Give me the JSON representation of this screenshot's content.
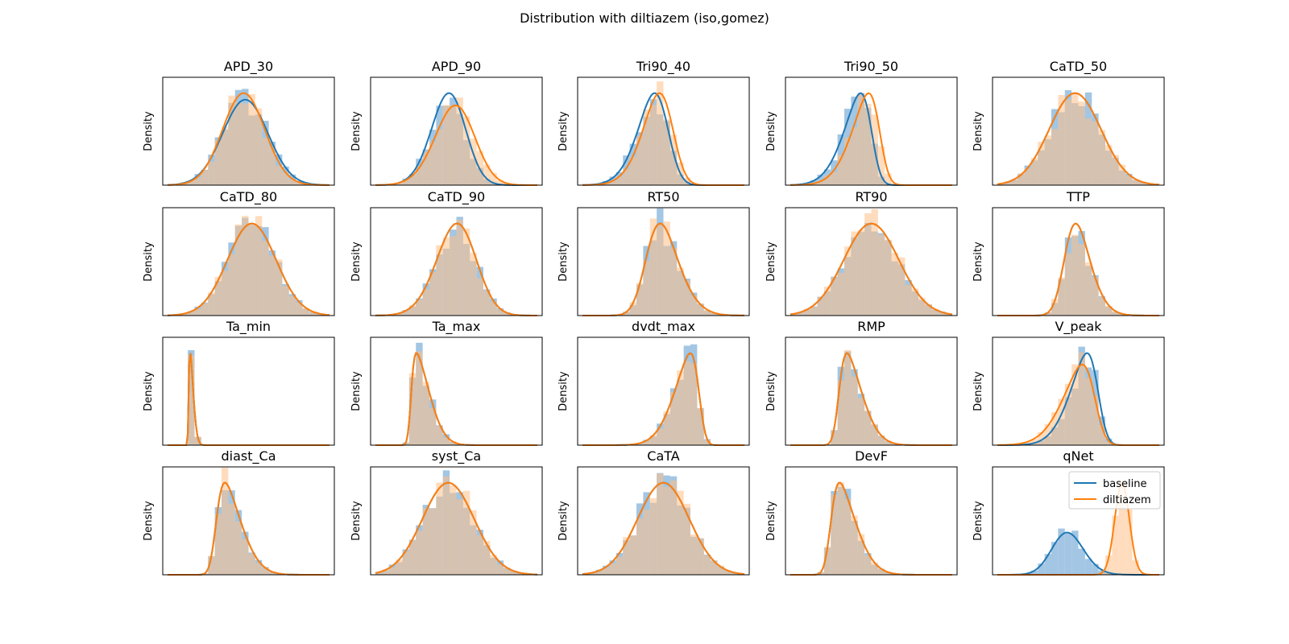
{
  "title": "Distribution with diltiazem (iso,gomez)",
  "colors": {
    "baseline": "#1f77b4",
    "diltiazem": "#ff7f0e",
    "hist_baseline": "#9dc3e2",
    "hist_diltiazem": "#ffbf86",
    "hist_overlap": "#c6a98d"
  },
  "chart_data": {
    "type": "histogram+kde",
    "grid": "5x4",
    "ylabel": "Density",
    "ticks_shown": false,
    "legend": {
      "location": "upper right",
      "in_panel": "qNet",
      "entries": [
        "baseline",
        "diltiazem"
      ]
    },
    "panels": [
      {
        "name": "APD_30",
        "baseline_shape": {
          "mu": 0.48,
          "sd": 0.14,
          "skew": 0
        },
        "diltiazem_shape": {
          "mu": 0.47,
          "sd": 0.13,
          "skew": 0
        }
      },
      {
        "name": "APD_90",
        "baseline_shape": {
          "mu": 0.52,
          "sd": 0.13,
          "skew": -1
        },
        "diltiazem_shape": {
          "mu": 0.57,
          "sd": 0.15,
          "skew": -1
        }
      },
      {
        "name": "Tri90_40",
        "baseline_shape": {
          "mu": 0.52,
          "sd": 0.14,
          "skew": -2
        },
        "diltiazem_shape": {
          "mu": 0.55,
          "sd": 0.14,
          "skew": -2
        }
      },
      {
        "name": "Tri90_50",
        "baseline_shape": {
          "mu": 0.5,
          "sd": 0.14,
          "skew": -3
        },
        "diltiazem_shape": {
          "mu": 0.55,
          "sd": 0.14,
          "skew": -3
        }
      },
      {
        "name": "CaTD_50",
        "baseline_shape": {
          "mu": 0.48,
          "sd": 0.16,
          "skew": 0
        },
        "diltiazem_shape": {
          "mu": 0.48,
          "sd": 0.16,
          "skew": 0
        }
      },
      {
        "name": "CaTD_80",
        "baseline_shape": {
          "mu": 0.52,
          "sd": 0.15,
          "skew": 0
        },
        "diltiazem_shape": {
          "mu": 0.52,
          "sd": 0.15,
          "skew": 0
        }
      },
      {
        "name": "CaTD_90",
        "baseline_shape": {
          "mu": 0.58,
          "sd": 0.15,
          "skew": -1
        },
        "diltiazem_shape": {
          "mu": 0.58,
          "sd": 0.15,
          "skew": -1
        }
      },
      {
        "name": "RT50",
        "baseline_shape": {
          "mu": 0.4,
          "sd": 0.15,
          "skew": 2
        },
        "diltiazem_shape": {
          "mu": 0.4,
          "sd": 0.15,
          "skew": 2
        }
      },
      {
        "name": "RT90",
        "baseline_shape": {
          "mu": 0.5,
          "sd": 0.17,
          "skew": 0
        },
        "diltiazem_shape": {
          "mu": 0.5,
          "sd": 0.17,
          "skew": 0
        }
      },
      {
        "name": "TTP",
        "baseline_shape": {
          "mu": 0.42,
          "sd": 0.12,
          "skew": 2
        },
        "diltiazem_shape": {
          "mu": 0.42,
          "sd": 0.12,
          "skew": 2
        }
      },
      {
        "name": "Ta_min",
        "baseline_shape": {
          "mu": 0.13,
          "sd": 0.025,
          "skew": 6
        },
        "diltiazem_shape": {
          "mu": 0.13,
          "sd": 0.025,
          "skew": 6
        }
      },
      {
        "name": "Ta_max",
        "baseline_shape": {
          "mu": 0.22,
          "sd": 0.1,
          "skew": 6
        },
        "diltiazem_shape": {
          "mu": 0.22,
          "sd": 0.1,
          "skew": 6
        }
      },
      {
        "name": "dvdt_max",
        "baseline_shape": {
          "mu": 0.72,
          "sd": 0.13,
          "skew": -4
        },
        "diltiazem_shape": {
          "mu": 0.72,
          "sd": 0.13,
          "skew": -4
        }
      },
      {
        "name": "RMP",
        "baseline_shape": {
          "mu": 0.3,
          "sd": 0.12,
          "skew": 4
        },
        "diltiazem_shape": {
          "mu": 0.3,
          "sd": 0.12,
          "skew": 4
        }
      },
      {
        "name": "V_peak",
        "baseline_shape": {
          "mu": 0.62,
          "sd": 0.14,
          "skew": -3
        },
        "diltiazem_shape": {
          "mu": 0.6,
          "sd": 0.16,
          "skew": -3
        }
      },
      {
        "name": "diast_Ca",
        "baseline_shape": {
          "mu": 0.3,
          "sd": 0.13,
          "skew": 4
        },
        "diltiazem_shape": {
          "mu": 0.3,
          "sd": 0.13,
          "skew": 4
        }
      },
      {
        "name": "syst_Ca",
        "baseline_shape": {
          "mu": 0.45,
          "sd": 0.16,
          "skew": 0
        },
        "diltiazem_shape": {
          "mu": 0.45,
          "sd": 0.16,
          "skew": 0
        }
      },
      {
        "name": "CaTA",
        "baseline_shape": {
          "mu": 0.5,
          "sd": 0.16,
          "skew": 0
        },
        "diltiazem_shape": {
          "mu": 0.5,
          "sd": 0.16,
          "skew": 0
        }
      },
      {
        "name": "DevF",
        "baseline_shape": {
          "mu": 0.25,
          "sd": 0.13,
          "skew": 4
        },
        "diltiazem_shape": {
          "mu": 0.25,
          "sd": 0.13,
          "skew": 4
        }
      },
      {
        "name": "qNet",
        "baseline_shape": {
          "mu": 0.37,
          "sd": 0.12,
          "skew": 1
        },
        "diltiazem_shape": {
          "mu": 0.77,
          "sd": 0.045,
          "skew": 0
        }
      }
    ]
  }
}
